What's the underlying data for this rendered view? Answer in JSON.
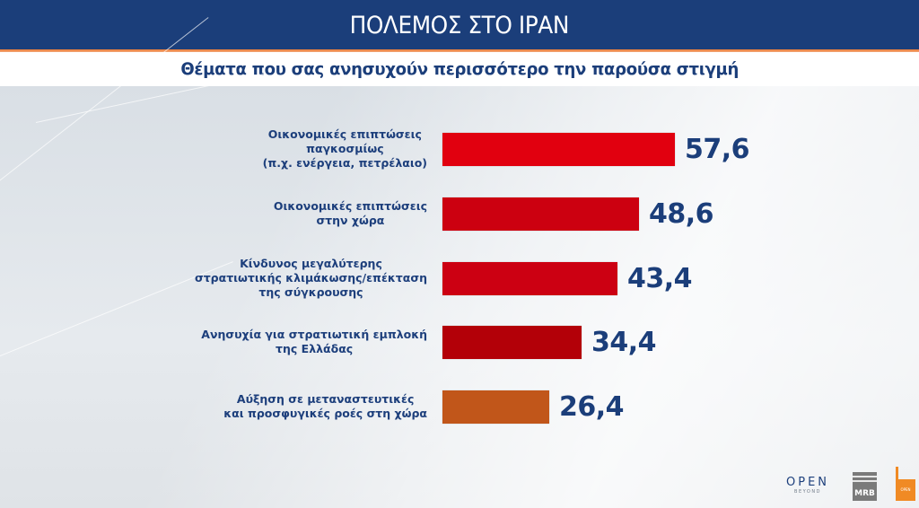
{
  "header": {
    "title": "ΠΟΛΕΜΟΣ ΣΤΟ ΙΡΑΝ",
    "subtitle": "Θέματα που σας ανησυχούν περισσότερο την παρούσα στιγμή"
  },
  "colors": {
    "header_bg": "#1b3e7a",
    "accent_line": "#e97a35",
    "text_blue": "#1b3e7a"
  },
  "chart_data": {
    "type": "bar",
    "orientation": "horizontal",
    "title": "Θέματα που σας ανησυχούν περισσότερο την παρούσα στιγμή",
    "categories": [
      "Οικονομικές επιπτώσεις παγκοσμίως (π.χ. ενέργεια, πετρέλαιο)",
      "Οικονομικές επιπτώσεις στην χώρα",
      "Κίνδυνος μεγαλύτερης στρατιωτικής κλιμάκωσης/επέκταση της σύγκρουσης",
      "Ανησυχία για στρατιωτική εμπλοκή της Ελλάδας",
      "Αύξηση σε μεταναστευτικές και προσφυγικές ροές στη χώρα"
    ],
    "values": [
      57.6,
      48.6,
      43.4,
      34.4,
      26.4
    ],
    "value_labels": [
      "57,6",
      "48,6",
      "43,4",
      "34,4",
      "26,4"
    ],
    "bar_colors": [
      "#e1000f",
      "#cc0010",
      "#cc0012",
      "#b30008",
      "#c1561a"
    ],
    "xlabel": "",
    "ylabel": "",
    "grid": false,
    "legend": null
  },
  "rows": [
    {
      "lines": [
        "Οικονομικές επιπτώσεις",
        "παγκοσμίως",
        "(π.χ. ενέργεια, πετρέλαιο)"
      ],
      "value": "57,6"
    },
    {
      "lines": [
        "Οικονομικές επιπτώσεις",
        "στην χώρα"
      ],
      "value": "48,6"
    },
    {
      "lines": [
        "Κίνδυνος μεγαλύτερης",
        "στρατιωτικής κλιμάκωσης/επέκταση",
        "της σύγκρουσης"
      ],
      "value": "43,4"
    },
    {
      "lines": [
        "Ανησυχία για στρατιωτική εμπλοκή",
        "της Ελλάδας"
      ],
      "value": "34,4"
    },
    {
      "lines": [
        "Αύξηση σε μεταναστευτικές",
        "και προσφυγικές ροές στη χώρα"
      ],
      "value": "26,4"
    }
  ],
  "logos": {
    "open": "OPEN",
    "open_sub": "BEYOND",
    "mrb": "MRB",
    "orange": "OPEN"
  }
}
